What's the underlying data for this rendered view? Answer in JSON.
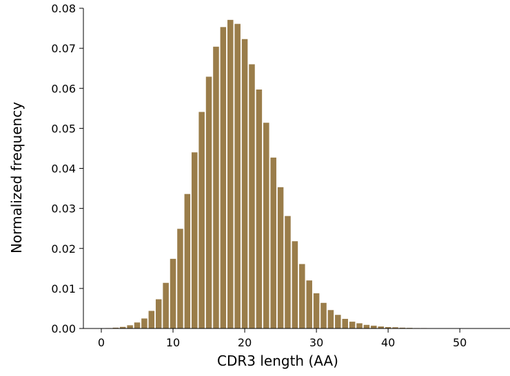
{
  "chart_data": {
    "type": "bar",
    "title": "",
    "xlabel": "CDR3 length (AA)",
    "ylabel": "Normalized frequency",
    "xlim": [
      -2.5,
      57
    ],
    "ylim": [
      0,
      0.08
    ],
    "xticks": [
      0,
      10,
      20,
      30,
      40,
      50
    ],
    "yticks": [
      0.0,
      0.01,
      0.02,
      0.03,
      0.04,
      0.05,
      0.06,
      0.07,
      0.08
    ],
    "xtick_labels": [
      "0",
      "10",
      "20",
      "30",
      "40",
      "50"
    ],
    "ytick_labels": [
      "0.00",
      "0.01",
      "0.02",
      "0.03",
      "0.04",
      "0.05",
      "0.06",
      "0.07",
      "0.08"
    ],
    "bar_color": "#9a7d4a",
    "grid": false,
    "x": [
      0,
      1,
      2,
      3,
      4,
      5,
      6,
      7,
      8,
      9,
      10,
      11,
      12,
      13,
      14,
      15,
      16,
      17,
      18,
      19,
      20,
      21,
      22,
      23,
      24,
      25,
      26,
      27,
      28,
      29,
      30,
      31,
      32,
      33,
      34,
      35,
      36,
      37,
      38,
      39,
      40,
      41,
      42,
      43,
      44,
      45,
      46,
      47,
      48,
      49,
      50,
      51,
      52,
      53,
      54,
      55
    ],
    "values": [
      5e-05,
      0.0001,
      0.0002,
      0.0004,
      0.0008,
      0.0015,
      0.0025,
      0.0044,
      0.0073,
      0.0114,
      0.0174,
      0.0249,
      0.0336,
      0.044,
      0.0541,
      0.0629,
      0.0704,
      0.0753,
      0.0771,
      0.0761,
      0.0723,
      0.066,
      0.0597,
      0.0514,
      0.0427,
      0.0353,
      0.0281,
      0.0218,
      0.0161,
      0.012,
      0.0088,
      0.0064,
      0.0046,
      0.0034,
      0.0024,
      0.0017,
      0.0013,
      0.0009,
      0.0007,
      0.0005,
      0.00035,
      0.0003,
      0.0002,
      0.00015,
      0.0001,
      0.0001,
      8e-05,
      6e-05,
      5e-05,
      4e-05,
      3e-05,
      3e-05,
      2e-05,
      2e-05,
      1e-05,
      1e-05
    ]
  }
}
